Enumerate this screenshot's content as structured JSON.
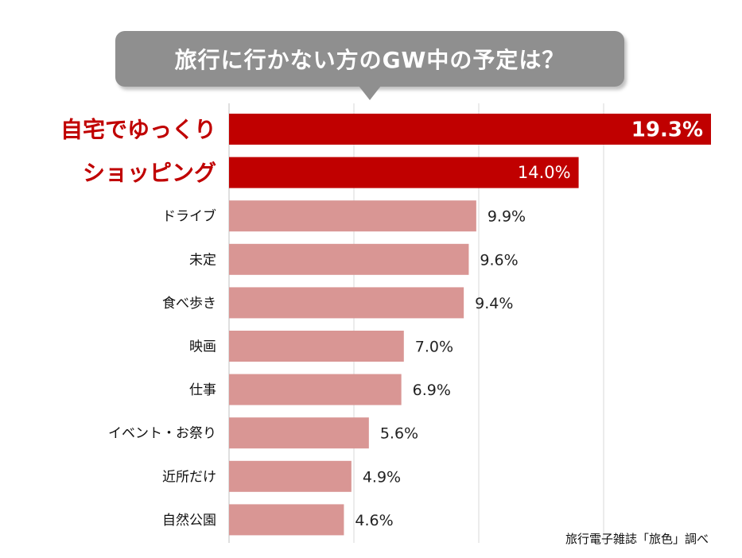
{
  "chart_data": {
    "type": "bar",
    "orientation": "horizontal",
    "title": "旅行に行かない方のGW中の予定は？",
    "categories": [
      "自宅でゆっくり",
      "ショッピング",
      "ドライブ",
      "未定",
      "食べ歩き",
      "映画",
      "仕事",
      "イベント・お祭り",
      "近所だけ",
      "自然公園"
    ],
    "values": [
      19.3,
      14.0,
      9.9,
      9.6,
      9.4,
      7.0,
      6.9,
      5.6,
      4.9,
      4.6
    ],
    "value_labels": [
      "19.3%",
      "14.0%",
      "9.9%",
      "9.6%",
      "9.4%",
      "7.0%",
      "6.9%",
      "5.6%",
      "4.9%",
      "4.6%"
    ],
    "xlim": [
      0,
      19.3
    ],
    "grid": true,
    "highlighted_count": 2,
    "colors": {
      "highlight": "#c00000",
      "normal": "#d99694",
      "grid": "#d9d9d9",
      "highlight_label": "#ffffff",
      "normal_label": "#222222"
    },
    "source": "旅行電子雑誌「旅色」調べ"
  }
}
